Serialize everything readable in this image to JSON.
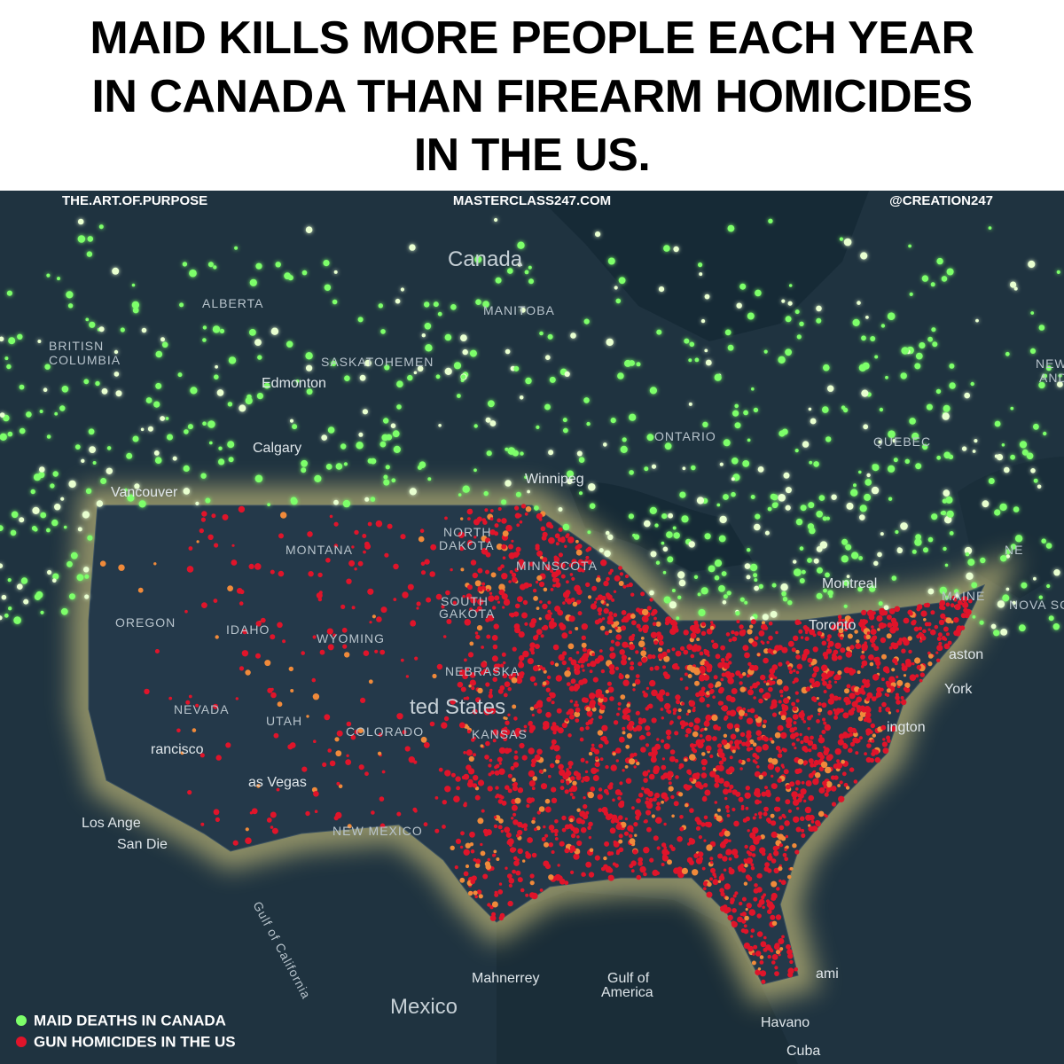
{
  "header": {
    "title_lines": [
      "MAID KILLS MORE PEOPLE EACH YEAR",
      "IN CANADA THAN FIREARM HOMICIDES",
      "IN THE US."
    ]
  },
  "watermarks": [
    "THE.ART.OF.PURPOSE",
    "MASTERCLASS247.COM",
    "@CREATION247"
  ],
  "map": {
    "labels": [
      "Canada",
      "ALBERTA",
      "BRITISN",
      "COLUMBIA",
      "MANITOBA",
      "SASKATOHEMEN",
      "Edmonton",
      "Calgary",
      "ONTARIO",
      "QUEBEC",
      "Winnipeg",
      "Vancouver",
      "NORTH",
      "DAKOTA",
      "MINNSCOTA",
      "MONTANA",
      "SOUTH",
      "GAKOTA",
      "OREGON",
      "IDAHO",
      "WYOMING",
      "NEBRASKA",
      "ted States",
      "KANSAS",
      "NEVADA",
      "UTAH",
      "COLORADO",
      "rancisco",
      "as Vegas",
      "Los Ange",
      "San Die",
      "NEW MEXICO",
      "Gulf of California",
      "Mahnerrey",
      "Gulf of",
      "America",
      "Mexico",
      "Havano",
      "Cuba",
      "Montreal",
      "Toronto",
      "MAINE",
      "NOVA SC",
      "NE",
      "aston",
      "York",
      "ington",
      "ami",
      "NEW",
      "AND"
    ]
  },
  "legend": [
    {
      "label": "MAID DEATHS IN CANADA",
      "color": "#7dff6a"
    },
    {
      "label": "GUN HOMICIDES IN THE US",
      "color": "#e0142a"
    }
  ]
}
